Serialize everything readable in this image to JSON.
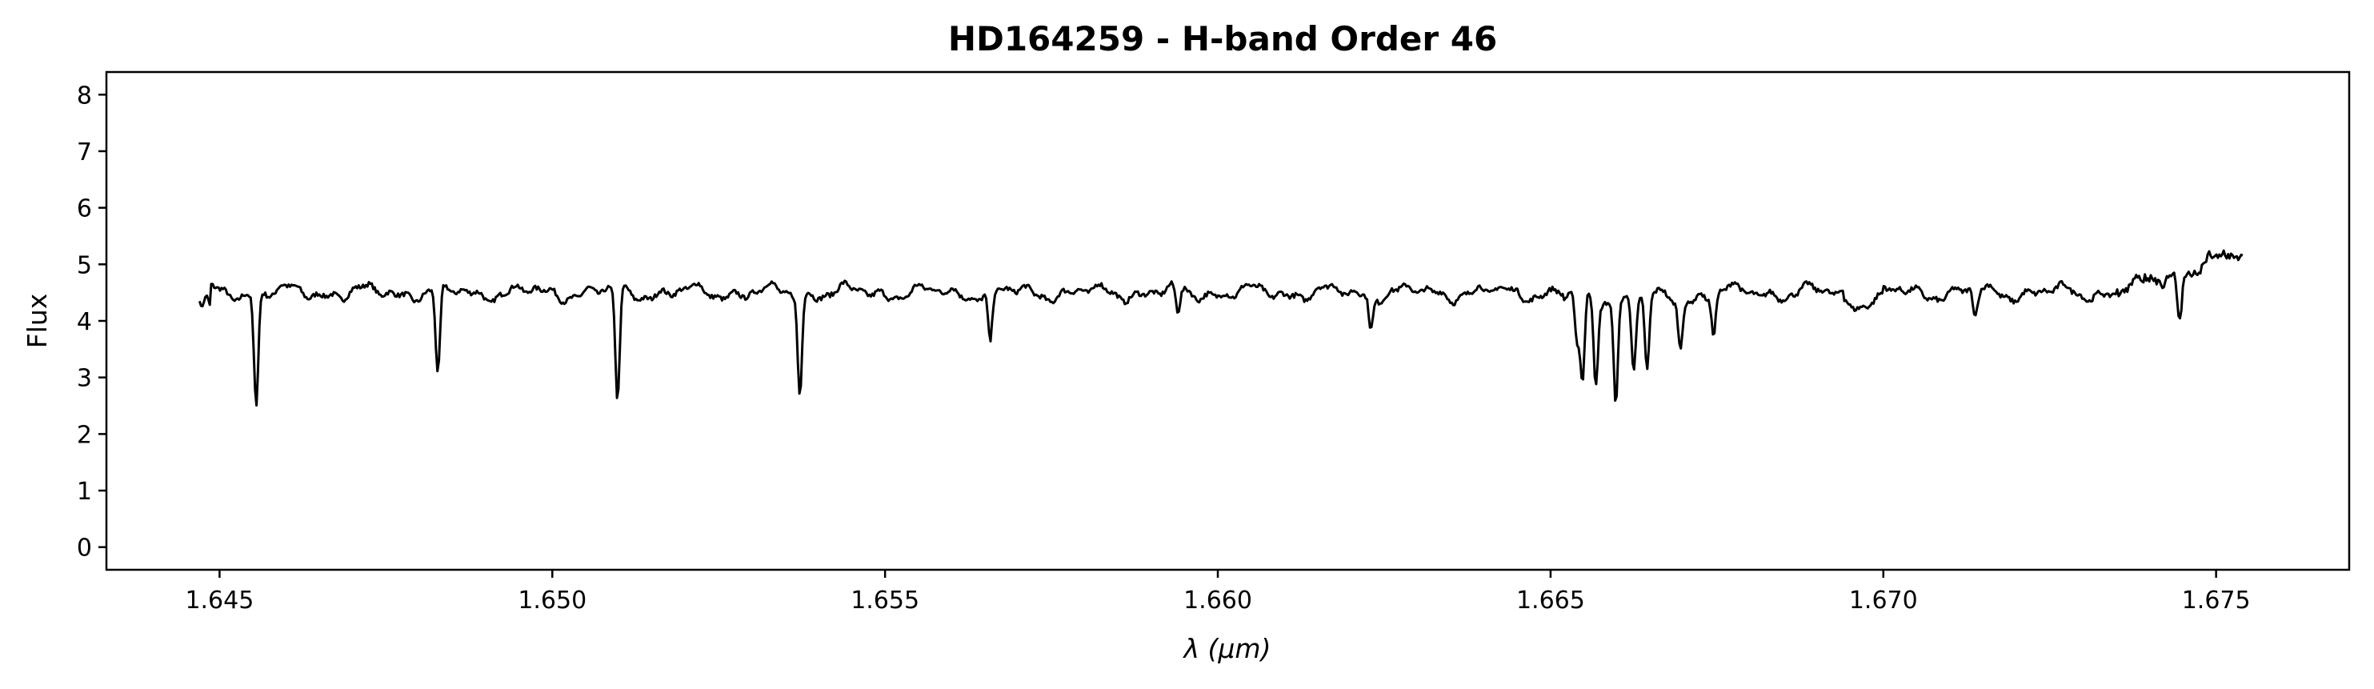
{
  "chart_data": {
    "type": "line",
    "title": "HD164259 - H-band Order 46",
    "xlabel": "λ (μm)",
    "ylabel": "Flux",
    "xlim": [
      1.6433,
      1.677
    ],
    "ylim": [
      -0.4,
      8.4
    ],
    "xticks": [
      "1.645",
      "1.650",
      "1.655",
      "1.660",
      "1.665",
      "1.670",
      "1.675"
    ],
    "xtick_values": [
      1.645,
      1.65,
      1.655,
      1.66,
      1.665,
      1.67,
      1.675
    ],
    "yticks": [
      "0",
      "1",
      "2",
      "3",
      "4",
      "5",
      "6",
      "7",
      "8"
    ],
    "ytick_values": [
      0,
      1,
      2,
      3,
      4,
      5,
      6,
      7,
      8
    ],
    "grid": false,
    "line_color": "#000000",
    "series": [
      {
        "x_start": 1.6447,
        "x_end": 1.6754,
        "continuum": 4.5,
        "start_value": 4.35,
        "end_value": 5.2,
        "absorption_lines": [
          {
            "x": 1.64555,
            "depth": 1.95
          },
          {
            "x": 1.64828,
            "depth": 1.55
          },
          {
            "x": 1.65098,
            "depth": 1.98
          },
          {
            "x": 1.65372,
            "depth": 1.75
          },
          {
            "x": 1.65658,
            "depth": 0.95
          },
          {
            "x": 1.6594,
            "depth": 0.45
          },
          {
            "x": 1.6623,
            "depth": 0.6
          },
          {
            "x": 1.6654,
            "depth": 0.85
          },
          {
            "x": 1.66548,
            "depth": 1.55
          },
          {
            "x": 1.66568,
            "depth": 1.5
          },
          {
            "x": 1.66625,
            "depth": 1.2
          },
          {
            "x": 1.66598,
            "depth": 1.75
          },
          {
            "x": 1.66645,
            "depth": 1.35
          },
          {
            "x": 1.66695,
            "depth": 0.85
          },
          {
            "x": 1.66745,
            "depth": 0.7
          },
          {
            "x": 1.67138,
            "depth": 0.45
          },
          {
            "x": 1.67445,
            "depth": 0.75
          }
        ]
      }
    ]
  }
}
